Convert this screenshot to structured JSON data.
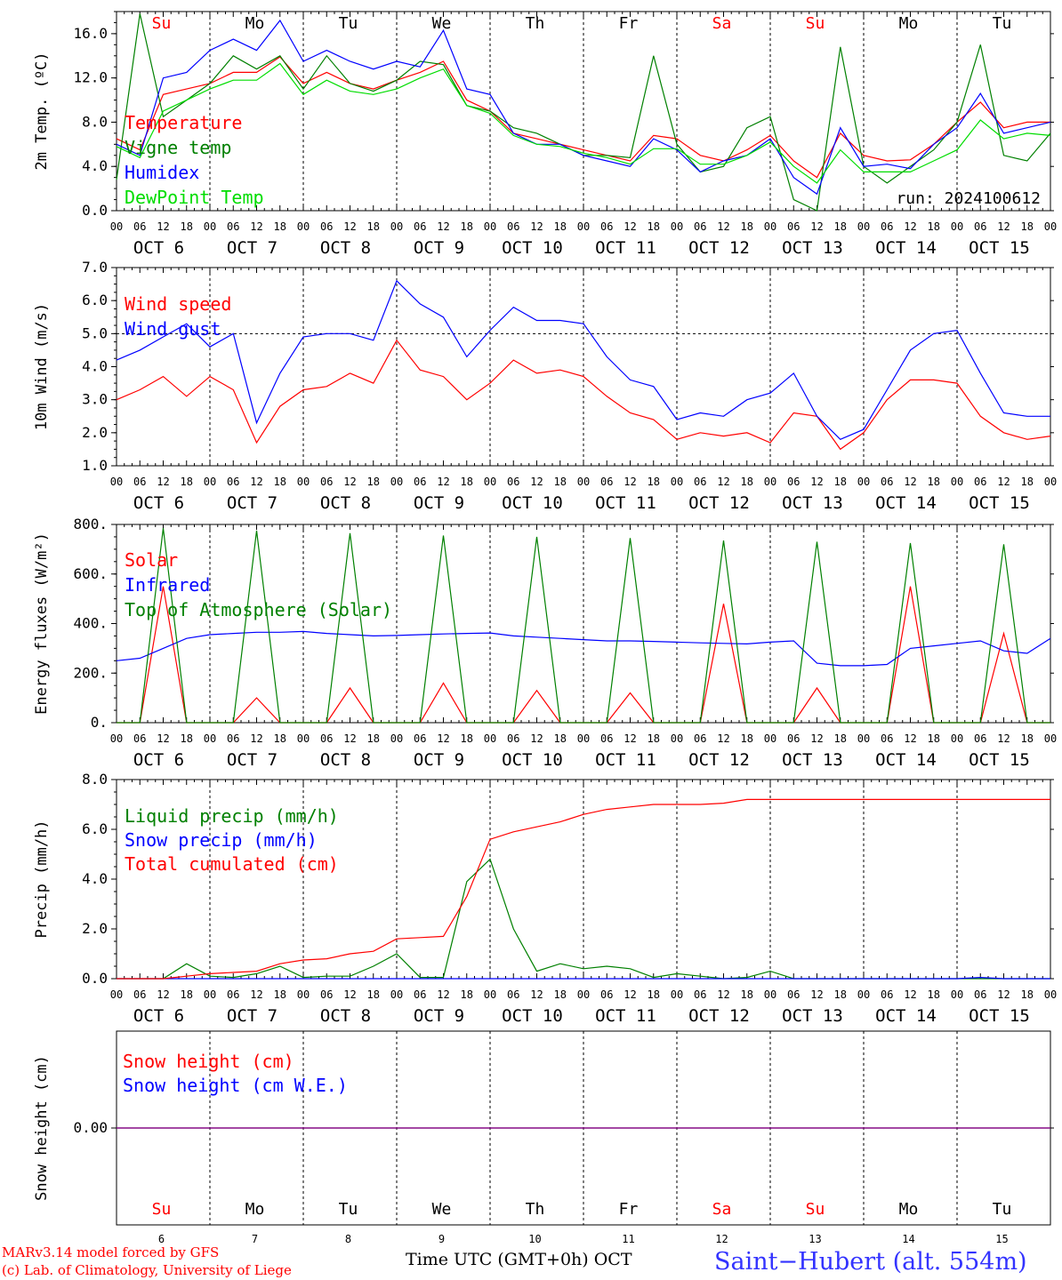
{
  "colors": {
    "red": "#ff0000",
    "green": "#008000",
    "blue": "#0000ff",
    "lightgreen": "#00dd00",
    "purple": "#800080",
    "weekend": "#ff0000",
    "weekday": "#000000"
  },
  "days": [
    {
      "abbr": "Su",
      "date": "OCT  6",
      "num": "6",
      "weekend": true
    },
    {
      "abbr": "Mo",
      "date": "OCT  7",
      "num": "7",
      "weekend": false
    },
    {
      "abbr": "Tu",
      "date": "OCT  8",
      "num": "8",
      "weekend": false
    },
    {
      "abbr": "We",
      "date": "OCT  9",
      "num": "9",
      "weekend": false
    },
    {
      "abbr": "Th",
      "date": "OCT 10",
      "num": "10",
      "weekend": false
    },
    {
      "abbr": "Fr",
      "date": "OCT 11",
      "num": "11",
      "weekend": false
    },
    {
      "abbr": "Sa",
      "date": "OCT 12",
      "num": "12",
      "weekend": true
    },
    {
      "abbr": "Su",
      "date": "OCT 13",
      "num": "13",
      "weekend": true
    },
    {
      "abbr": "Mo",
      "date": "OCT 14",
      "num": "14",
      "weekend": false
    },
    {
      "abbr": "Tu",
      "date": "OCT 15",
      "num": "15",
      "weekend": false
    }
  ],
  "hour_labels": [
    "00",
    "06",
    "12",
    "18"
  ],
  "final_hour_label": "00",
  "footer": {
    "model": "MARv3.14 model forced by GFS",
    "lab": "(c) Lab. of Climatology, University of Liege",
    "axis": "Time UTC (GMT+0h) OCT",
    "location": "Saint−Hubert (alt. 554m)"
  },
  "chart_data": [
    {
      "type": "line",
      "ylabel": "2m Temp. (ºC)",
      "ylim": [
        0,
        18
      ],
      "yticks": [
        0,
        4,
        8,
        12,
        16
      ],
      "ytick_labels": [
        "0.0",
        "4.0",
        "8.0",
        "12.0",
        "16.0"
      ],
      "run_label": "run: 2024100612",
      "x_unit": "hours since OCT 6 00 UTC",
      "x": [
        0,
        6,
        12,
        18,
        24,
        30,
        36,
        42,
        48,
        54,
        60,
        66,
        72,
        78,
        84,
        90,
        96,
        102,
        108,
        114,
        120,
        126,
        132,
        138,
        144,
        150,
        156,
        162,
        168,
        174,
        180,
        186,
        192,
        198,
        204,
        210,
        216,
        222,
        228,
        234,
        240
      ],
      "series": [
        {
          "name": "Temperature",
          "color": "#ff0000",
          "values": [
            6.5,
            5.5,
            10.5,
            11,
            11.5,
            12.5,
            12.5,
            13.9,
            11.5,
            12.5,
            11.5,
            11,
            11.8,
            12.5,
            13.5,
            10,
            9,
            7,
            6.5,
            6,
            5.5,
            5,
            4.5,
            6.8,
            6.5,
            5,
            4.5,
            5.5,
            6.8,
            4.5,
            3,
            7,
            5,
            4.5,
            4.6,
            6,
            8,
            9.8,
            7.5,
            8,
            8
          ]
        },
        {
          "name": "Vigne temp",
          "color": "#008000",
          "values": [
            2.8,
            17.8,
            8.5,
            10,
            11.5,
            14,
            12.8,
            14,
            11,
            14,
            11.5,
            10.8,
            11.8,
            13.5,
            13.2,
            9.5,
            9,
            7.5,
            7,
            6,
            5,
            5,
            4.8,
            14,
            6,
            3.5,
            4,
            7.5,
            8.5,
            1,
            0,
            14.8,
            4,
            2.5,
            4,
            5.5,
            8,
            15,
            5,
            4.5,
            7
          ]
        },
        {
          "name": "Humidex",
          "color": "#0000ff",
          "values": [
            6,
            5,
            12,
            12.5,
            14.5,
            15.5,
            14.5,
            17.2,
            13.5,
            14.5,
            13.5,
            12.8,
            13.5,
            13,
            16.3,
            11,
            10.5,
            7,
            6,
            6,
            5,
            4.5,
            4,
            6.5,
            5.5,
            3.5,
            4.5,
            5,
            6.5,
            3,
            1.5,
            7.5,
            4,
            4.2,
            3.8,
            6,
            7.5,
            10.6,
            7,
            7.5,
            8
          ]
        },
        {
          "name": "DewPoint Temp",
          "color": "#00dd00",
          "values": [
            5.8,
            4.8,
            9,
            10,
            11,
            11.8,
            11.8,
            13.3,
            10.5,
            11.8,
            10.8,
            10.5,
            11,
            12,
            12.8,
            9.5,
            8.8,
            6.8,
            6,
            5.8,
            5.2,
            4.8,
            4.2,
            5.6,
            5.6,
            4.2,
            4.2,
            5,
            6.2,
            4,
            2.5,
            5.5,
            3.5,
            3.5,
            3.5,
            4.5,
            5.5,
            8.2,
            6.5,
            7,
            6.8
          ]
        }
      ]
    },
    {
      "type": "line",
      "ylabel": "10m Wind (m/s)",
      "ylim": [
        1,
        7
      ],
      "reference_line": 5,
      "yticks": [
        1,
        2,
        3,
        4,
        5,
        6,
        7
      ],
      "ytick_labels": [
        "1.0",
        "2.0",
        "3.0",
        "4.0",
        "5.0",
        "6.0",
        "7.0"
      ],
      "x_unit": "hours since OCT 6 00 UTC",
      "x": [
        0,
        6,
        12,
        18,
        24,
        30,
        36,
        42,
        48,
        54,
        60,
        66,
        72,
        78,
        84,
        90,
        96,
        102,
        108,
        114,
        120,
        126,
        132,
        138,
        144,
        150,
        156,
        162,
        168,
        174,
        180,
        186,
        192,
        198,
        204,
        210,
        216,
        222,
        228,
        234,
        240
      ],
      "series": [
        {
          "name": "Wind speed",
          "color": "#ff0000",
          "values": [
            3,
            3.3,
            3.7,
            3.1,
            3.7,
            3.3,
            1.7,
            2.8,
            3.3,
            3.4,
            3.8,
            3.5,
            4.8,
            3.9,
            3.7,
            3,
            3.5,
            4.2,
            3.8,
            3.9,
            3.7,
            3.1,
            2.6,
            2.4,
            1.8,
            2,
            1.9,
            2,
            1.7,
            2.6,
            2.5,
            1.5,
            2,
            3,
            3.6,
            3.6,
            3.5,
            2.5,
            2,
            1.8,
            1.9
          ]
        },
        {
          "name": "Wind gust",
          "color": "#0000ff",
          "values": [
            4.2,
            4.5,
            4.9,
            5.3,
            4.6,
            5.0,
            2.3,
            3.8,
            4.9,
            5.0,
            5.0,
            4.8,
            6.6,
            5.9,
            5.5,
            4.3,
            5.1,
            5.8,
            5.4,
            5.4,
            5.3,
            4.3,
            3.6,
            3.4,
            2.4,
            2.6,
            2.5,
            3.0,
            3.2,
            3.8,
            2.5,
            1.8,
            2.1,
            3.3,
            4.5,
            5.0,
            5.1,
            3.8,
            2.6,
            2.5,
            2.5
          ]
        }
      ]
    },
    {
      "type": "line",
      "ylabel": "Energy fluxes (W/m²)",
      "ylim": [
        0,
        800
      ],
      "yticks": [
        0,
        200,
        400,
        600,
        800
      ],
      "ytick_labels": [
        "0.",
        "200.",
        "400.",
        "600.",
        "800."
      ],
      "x_unit": "hours since OCT 6 00 UTC",
      "x": [
        0,
        6,
        12,
        18,
        24,
        30,
        36,
        42,
        48,
        54,
        60,
        66,
        72,
        78,
        84,
        90,
        96,
        102,
        108,
        114,
        120,
        126,
        132,
        138,
        144,
        150,
        156,
        162,
        168,
        174,
        180,
        186,
        192,
        198,
        204,
        210,
        216,
        222,
        228,
        234,
        240
      ],
      "series": [
        {
          "name": "Solar",
          "color": "#ff0000",
          "values": [
            0,
            0,
            550,
            0,
            0,
            0,
            100,
            0,
            0,
            0,
            140,
            0,
            0,
            0,
            160,
            0,
            0,
            0,
            130,
            0,
            0,
            0,
            120,
            0,
            0,
            0,
            480,
            0,
            0,
            0,
            140,
            0,
            0,
            0,
            550,
            0,
            0,
            0,
            360,
            0,
            0
          ]
        },
        {
          "name": "Infrared",
          "color": "#0000ff",
          "values": [
            250,
            260,
            300,
            340,
            355,
            360,
            365,
            365,
            368,
            360,
            355,
            350,
            352,
            355,
            358,
            360,
            362,
            350,
            345,
            340,
            335,
            330,
            330,
            328,
            325,
            322,
            320,
            318,
            325,
            330,
            240,
            230,
            230,
            235,
            300,
            310,
            320,
            330,
            290,
            280,
            340
          ]
        },
        {
          "name": "Top of Atmosphere (Solar)",
          "color": "#008000",
          "values": [
            0,
            0,
            785,
            0,
            0,
            0,
            775,
            0,
            0,
            0,
            765,
            0,
            0,
            0,
            755,
            0,
            0,
            0,
            750,
            0,
            0,
            0,
            745,
            0,
            0,
            0,
            735,
            0,
            0,
            0,
            730,
            0,
            0,
            0,
            725,
            0,
            0,
            0,
            720,
            0,
            0
          ]
        }
      ]
    },
    {
      "type": "line",
      "ylabel": "Precip (mm/h)",
      "ylim": [
        0,
        8
      ],
      "yticks": [
        0,
        2,
        4,
        6,
        8
      ],
      "ytick_labels": [
        "0.0",
        "2.0",
        "4.0",
        "6.0",
        "8.0"
      ],
      "x_unit": "hours since OCT 6 00 UTC",
      "x": [
        0,
        6,
        12,
        18,
        24,
        30,
        36,
        42,
        48,
        54,
        60,
        66,
        72,
        78,
        84,
        90,
        96,
        102,
        108,
        114,
        120,
        126,
        132,
        138,
        144,
        150,
        156,
        162,
        168,
        174,
        180,
        186,
        192,
        198,
        204,
        210,
        216,
        222,
        228,
        234,
        240
      ],
      "series": [
        {
          "name": "Liquid precip (mm/h)",
          "color": "#008000",
          "values": [
            0,
            0,
            0,
            0.6,
            0.1,
            0.05,
            0.2,
            0.5,
            0.05,
            0.1,
            0.1,
            0.5,
            1.0,
            0.05,
            0.05,
            3.9,
            4.8,
            2.0,
            0.3,
            0.6,
            0.4,
            0.5,
            0.4,
            0.05,
            0.2,
            0.1,
            0,
            0.05,
            0.3,
            0,
            0,
            0,
            0,
            0,
            0,
            0,
            0,
            0,
            0,
            0,
            0
          ]
        },
        {
          "name": "Snow precip (mm/h)",
          "color": "#0000ff",
          "values": [
            0,
            0,
            0,
            0,
            0,
            0,
            0,
            0,
            0,
            0,
            0,
            0,
            0,
            0,
            0,
            0,
            0,
            0,
            0,
            0,
            0,
            0,
            0,
            0,
            0,
            0,
            0,
            0,
            0,
            0,
            0,
            0,
            0,
            0,
            0,
            0,
            0,
            0.05,
            0,
            0,
            0
          ]
        },
        {
          "name": "Total cumulated (cm)",
          "color": "#ff0000",
          "values": [
            0,
            0,
            0,
            0.1,
            0.2,
            0.25,
            0.3,
            0.6,
            0.75,
            0.8,
            1.0,
            1.1,
            1.6,
            1.65,
            1.7,
            3.3,
            5.6,
            5.9,
            6.1,
            6.3,
            6.6,
            6.8,
            6.9,
            7.0,
            7.0,
            7.0,
            7.05,
            7.2,
            7.2,
            7.2,
            7.2,
            7.2,
            7.2,
            7.2,
            7.2,
            7.2,
            7.2,
            7.2,
            7.2,
            7.2,
            7.2
          ]
        }
      ]
    },
    {
      "type": "line",
      "ylabel": "Snow height (cm)",
      "ylim": [
        -1,
        1
      ],
      "yticks": [
        0
      ],
      "ytick_labels": [
        "0.00"
      ],
      "x_unit": "hours since OCT 6 00 UTC",
      "x": [
        0,
        240
      ],
      "series": [
        {
          "name": "Snow height (cm)",
          "color": "#ff0000",
          "values": [
            0,
            0
          ]
        },
        {
          "name": "Snow height (cm W.E.)",
          "color": "#0000ff",
          "values": [
            0,
            0
          ]
        }
      ]
    }
  ]
}
